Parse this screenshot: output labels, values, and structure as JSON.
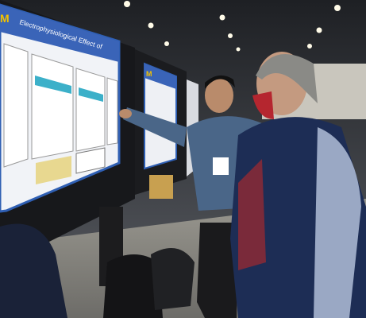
{
  "scene": {
    "posters": [
      {
        "logo": "M",
        "title": "Electrophysiological Effect of"
      },
      {
        "logo": "M"
      }
    ]
  }
}
